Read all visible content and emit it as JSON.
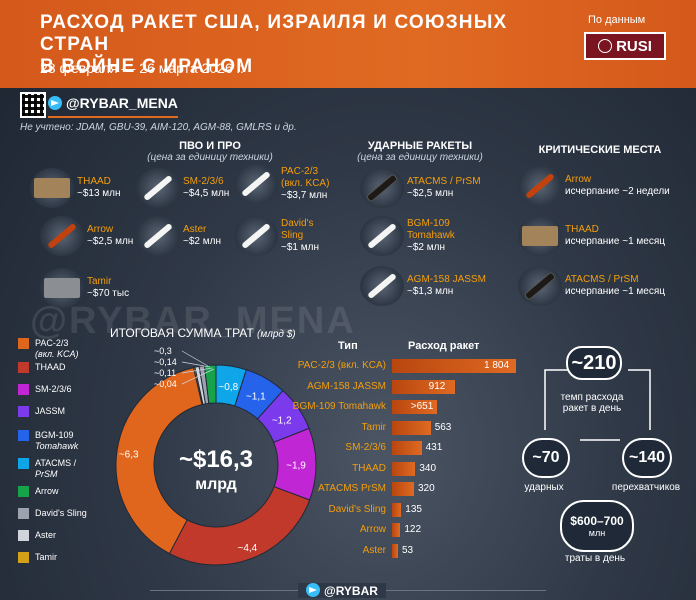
{
  "header": {
    "title_line1": "Расход ракет США, Израиля и союзных стран",
    "title_line2": "в войне с Ираном",
    "dates": "28 февраля — 26 марта 2026 г.",
    "source_label": "По данным",
    "source_logo": "RUSI"
  },
  "brand": {
    "handle": "@RYBAR_MENA",
    "watermark": "@RYBAR_MENA",
    "footer": "@RYBAR"
  },
  "note": "Не учтено: JDAM, GBU-39, AIM-120, AGM-88, GMLRS и др.",
  "pvo": {
    "title": "ПВО И ПРО",
    "subtitle": "(цена за единицу техники)",
    "items": [
      {
        "name": "THAAD",
        "price": "~$13 млн"
      },
      {
        "name": "SM-2/3/6",
        "price": "~$4,5 млн"
      },
      {
        "name": "PAC-2/3",
        "name_sub": "(вкл. KCA)",
        "price": "~$3,7 млн"
      },
      {
        "name": "Arrow",
        "price": "~$2,5 млн"
      },
      {
        "name": "Aster",
        "price": "~$2 млн"
      },
      {
        "name": "David's Sling",
        "price": "~$1 млн"
      },
      {
        "name": "Tamir",
        "price": "~$70 тыс"
      }
    ]
  },
  "strike": {
    "title": "УДАРНЫЕ РАКЕТЫ",
    "subtitle": "(цена за единицу техники)",
    "items": [
      {
        "name": "ATACMS / PrSM",
        "price": "~$2,5 млн"
      },
      {
        "name": "BGM-109 Tomahawk",
        "price": "~$2 млн"
      },
      {
        "name": "AGM-158 JASSM",
        "price": "~$1,3 млн"
      }
    ]
  },
  "critical": {
    "title": "КРИТИЧЕСКИЕ МЕСТА",
    "items": [
      {
        "name": "Arrow",
        "status": "исчерпание ~2 недели"
      },
      {
        "name": "THAAD",
        "status": "исчерпание ~1 месяц"
      },
      {
        "name": "ATACMS / PrSM",
        "status": "исчерпание ~1 месяц"
      }
    ]
  },
  "colors": {
    "orange": "#e0661e",
    "red": "#c0392b",
    "magenta": "#c026d3",
    "violet": "#7c3aed",
    "blue": "#2563eb",
    "teal": "#0ea5e9",
    "green": "#16a34a",
    "grey": "#9ca3af",
    "lightgrey": "#d1d5db",
    "yellow": "#d4a017"
  },
  "chart_data": [
    {
      "type": "pie",
      "title": "ИТОГОВАЯ СУММА ТРАТ",
      "title_unit": "(млрд $)",
      "total_label": "~$16,3",
      "total_unit": "млрд",
      "slices": [
        {
          "name": "PAC-2/3 (вкл. KCA)",
          "value": 6.3,
          "label": "~6,3",
          "color": "#e0661e"
        },
        {
          "name": "THAAD",
          "value": 4.4,
          "label": "~4,4",
          "color": "#c0392b"
        },
        {
          "name": "SM-2/3/6",
          "value": 1.9,
          "label": "~1,9",
          "color": "#c026d3"
        },
        {
          "name": "JASSM",
          "value": 1.2,
          "label": "~1,2",
          "color": "#7c3aed"
        },
        {
          "name": "BGM-109 Tomahawk",
          "value": 1.1,
          "label": "~1,1",
          "color": "#2563eb"
        },
        {
          "name": "ATACMS / PrSM",
          "value": 0.8,
          "label": "~0,8",
          "color": "#0ea5e9"
        },
        {
          "name": "Arrow",
          "value": 0.3,
          "label": "~0,3",
          "color": "#16a34a"
        },
        {
          "name": "David's Sling",
          "value": 0.14,
          "label": "~0,14",
          "color": "#9ca3af"
        },
        {
          "name": "Aster",
          "value": 0.11,
          "label": "~0,11",
          "color": "#d1d5db"
        },
        {
          "name": "Tamir",
          "value": 0.04,
          "label": "~0,04",
          "color": "#d4a017"
        }
      ],
      "legend": [
        {
          "name": "PAC-2/3",
          "sub": "(вкл. KCA)"
        },
        {
          "name": "THAAD"
        },
        {
          "name": "SM-2/3/6"
        },
        {
          "name": "JASSM"
        },
        {
          "name": "BGM-109",
          "sub": "Tomahawk"
        },
        {
          "name": "ATACMS /",
          "sub": "PrSM"
        },
        {
          "name": "Arrow"
        },
        {
          "name": "David's Sling"
        },
        {
          "name": "Aster"
        },
        {
          "name": "Tamir"
        }
      ]
    },
    {
      "type": "bar",
      "col_type": "Тип",
      "col_value": "Расход ракет",
      "categories": [
        "PAC-2/3 (вкл. KCA)",
        "AGM-158 JASSM",
        "BGM-109 Tomahawk",
        "Tamir",
        "SM-2/3/6",
        "THAAD",
        "ATACMS PrSM",
        "David's Sling",
        "Arrow",
        "Aster"
      ],
      "values": [
        1804,
        912,
        651,
        563,
        431,
        340,
        320,
        135,
        122,
        53
      ],
      "value_labels": [
        "1 804",
        "912",
        ">651",
        "563",
        "431",
        "340",
        "320",
        "135",
        "122",
        "53"
      ],
      "xlim": [
        0,
        1804
      ]
    }
  ],
  "stats": {
    "rate_value": "~210",
    "rate_label_1": "темп расхода",
    "rate_label_2": "ракет в день",
    "strike_value": "~70",
    "strike_label": "ударных",
    "interceptor_value": "~140",
    "interceptor_label": "перехватчиков",
    "spend_value": "$600–700",
    "spend_unit": "млн",
    "spend_label": "траты в день"
  }
}
